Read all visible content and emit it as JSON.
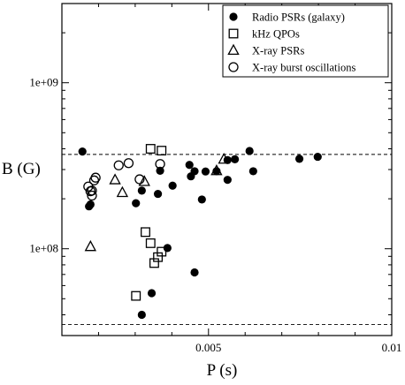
{
  "chart_data": {
    "type": "scatter",
    "xlabel": "P (s)",
    "ylabel": "B (G)",
    "xlim": [
      0.001,
      0.01
    ],
    "ylim": [
      30000000.0,
      3000000000.0
    ],
    "yscale": "log",
    "x_ticks": [
      {
        "value": 0.005,
        "label": "0.005"
      },
      {
        "value": 0.01,
        "label": "0.01"
      }
    ],
    "y_ticks": [
      {
        "value": 100000000.0,
        "label": "1e+08"
      },
      {
        "value": 1000000000.0,
        "label": "1e+09"
      }
    ],
    "reference_lines": [
      {
        "y": 370000000.0,
        "style": "dashed"
      },
      {
        "y": 35000000.0,
        "style": "dashed"
      }
    ],
    "legend": {
      "placement": "top-right"
    },
    "grid": false,
    "series": [
      {
        "name": "Radio PSRs (galaxy)",
        "marker": "filled-circle",
        "points": [
          [
            0.00156,
            385000000.0
          ],
          [
            0.00174,
            180000000.0
          ],
          [
            0.00178,
            185000000.0
          ],
          [
            0.00302,
            188000000.0
          ],
          [
            0.00318,
            224000000.0
          ],
          [
            0.00318,
            40000000.0
          ],
          [
            0.00345,
            54000000.0
          ],
          [
            0.00362,
            214000000.0
          ],
          [
            0.00368,
            295000000.0
          ],
          [
            0.00388,
            101000000.0
          ],
          [
            0.00402,
            240000000.0
          ],
          [
            0.00452,
            273000000.0
          ],
          [
            0.00448,
            320000000.0
          ],
          [
            0.00462,
            293000000.0
          ],
          [
            0.00462,
            72000000.0
          ],
          [
            0.00482,
            198000000.0
          ],
          [
            0.00492,
            292000000.0
          ],
          [
            0.00522,
            293000000.0
          ],
          [
            0.00552,
            260000000.0
          ],
          [
            0.00552,
            342000000.0
          ],
          [
            0.00572,
            346000000.0
          ],
          [
            0.00612,
            388000000.0
          ],
          [
            0.00622,
            293000000.0
          ],
          [
            0.00748,
            348000000.0
          ],
          [
            0.00798,
            358000000.0
          ]
        ]
      },
      {
        "name": "kHz QPOs",
        "marker": "open-square",
        "points": [
          [
            0.00302,
            52000000.0
          ],
          [
            0.00328,
            126000000.0
          ],
          [
            0.00342,
            400000000.0
          ],
          [
            0.00342,
            108000000.0
          ],
          [
            0.00352,
            82000000.0
          ],
          [
            0.00362,
            89000000.0
          ],
          [
            0.00372,
            96000000.0
          ],
          [
            0.00372,
            390000000.0
          ]
        ]
      },
      {
        "name": "X-ray PSRs",
        "marker": "open-triangle",
        "points": [
          [
            0.00178,
            103000000.0
          ],
          [
            0.00245,
            260000000.0
          ],
          [
            0.00265,
            218000000.0
          ],
          [
            0.00325,
            254000000.0
          ],
          [
            0.00522,
            295000000.0
          ],
          [
            0.00542,
            346000000.0
          ]
        ]
      },
      {
        "name": "X-ray burst oscillations",
        "marker": "open-circle",
        "points": [
          [
            0.00172,
            237000000.0
          ],
          [
            0.00178,
            222000000.0
          ],
          [
            0.00182,
            224000000.0
          ],
          [
            0.00182,
            209000000.0
          ],
          [
            0.00188,
            258000000.0
          ],
          [
            0.00192,
            268000000.0
          ],
          [
            0.00255,
            318000000.0
          ],
          [
            0.00282,
            328000000.0
          ],
          [
            0.00312,
            262000000.0
          ],
          [
            0.00368,
            324000000.0
          ]
        ]
      }
    ]
  }
}
